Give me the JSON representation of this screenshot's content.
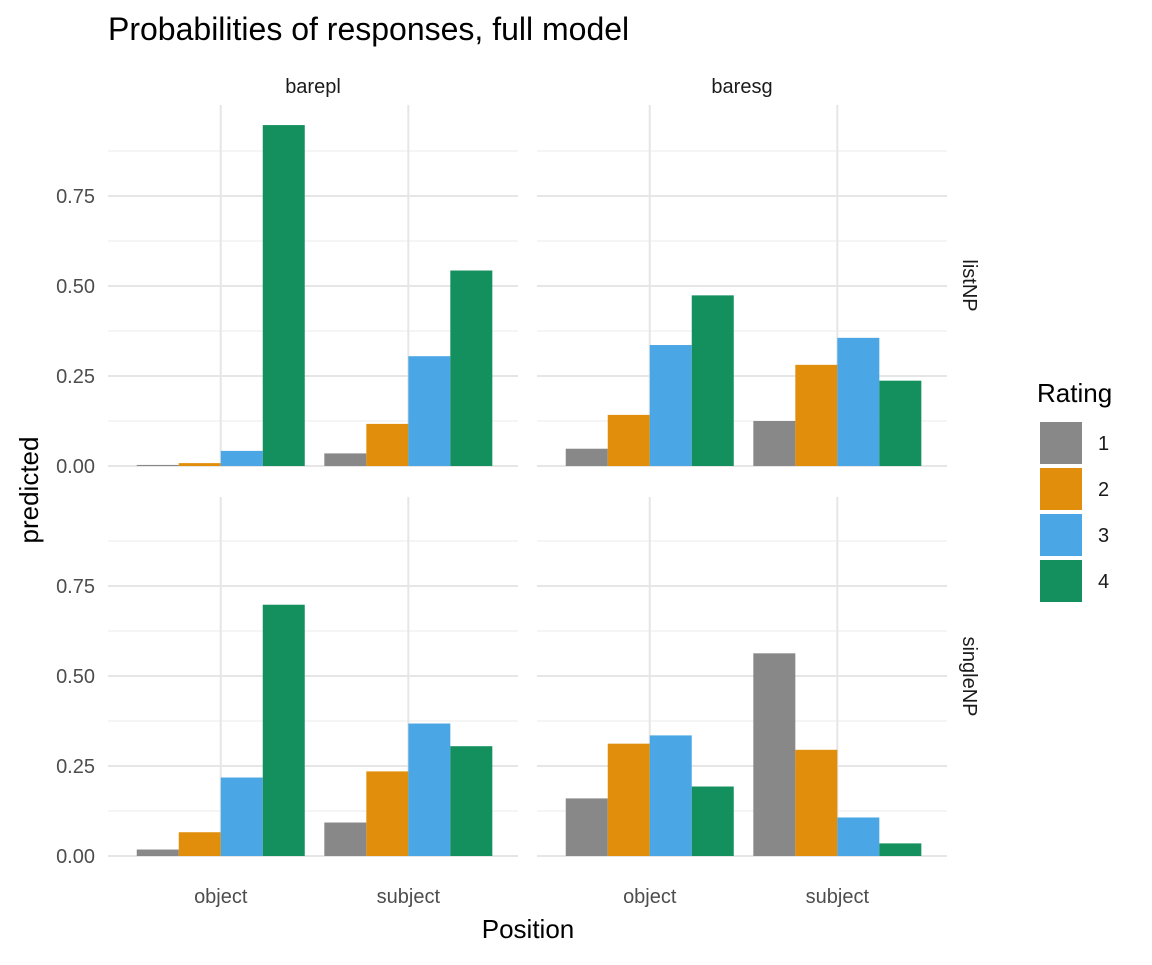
{
  "chart_data": {
    "type": "bar",
    "title": "Probabilities of responses, full model",
    "xlabel": "Position",
    "ylabel": "predicted",
    "ylim": [
      0,
      1.0
    ],
    "yticks": [
      0.0,
      0.25,
      0.5,
      0.75
    ],
    "ytick_labels": [
      "0.00",
      "0.25",
      "0.50",
      "0.75"
    ],
    "categories": [
      "object",
      "subject"
    ],
    "col_facets": [
      "barepl",
      "baresg"
    ],
    "row_facets": [
      "listNP",
      "singleNP"
    ],
    "legend": {
      "title": "Rating",
      "position": "right",
      "entries": [
        {
          "label": "1",
          "color": "#888888"
        },
        {
          "label": "2",
          "color": "#E08E0B"
        },
        {
          "label": "3",
          "color": "#4AA6E4"
        },
        {
          "label": "4",
          "color": "#148F5E"
        }
      ]
    },
    "grid": true,
    "panels": [
      {
        "col": "barepl",
        "row": "listNP",
        "series": [
          {
            "name": "1",
            "values": [
              0.003,
              0.035
            ]
          },
          {
            "name": "2",
            "values": [
              0.008,
              0.117
            ]
          },
          {
            "name": "3",
            "values": [
              0.042,
              0.305
            ]
          },
          {
            "name": "4",
            "values": [
              0.947,
              0.543
            ]
          }
        ]
      },
      {
        "col": "baresg",
        "row": "listNP",
        "series": [
          {
            "name": "1",
            "values": [
              0.048,
              0.125
            ]
          },
          {
            "name": "2",
            "values": [
              0.142,
              0.281
            ]
          },
          {
            "name": "3",
            "values": [
              0.336,
              0.356
            ]
          },
          {
            "name": "4",
            "values": [
              0.474,
              0.237
            ]
          }
        ]
      },
      {
        "col": "barepl",
        "row": "singleNP",
        "series": [
          {
            "name": "1",
            "values": [
              0.018,
              0.093
            ]
          },
          {
            "name": "2",
            "values": [
              0.066,
              0.235
            ]
          },
          {
            "name": "3",
            "values": [
              0.218,
              0.368
            ]
          },
          {
            "name": "4",
            "values": [
              0.698,
              0.305
            ]
          }
        ]
      },
      {
        "col": "baresg",
        "row": "singleNP",
        "series": [
          {
            "name": "1",
            "values": [
              0.16,
              0.563
            ]
          },
          {
            "name": "2",
            "values": [
              0.312,
              0.295
            ]
          },
          {
            "name": "3",
            "values": [
              0.335,
              0.107
            ]
          },
          {
            "name": "4",
            "values": [
              0.193,
              0.035
            ]
          }
        ]
      }
    ]
  }
}
